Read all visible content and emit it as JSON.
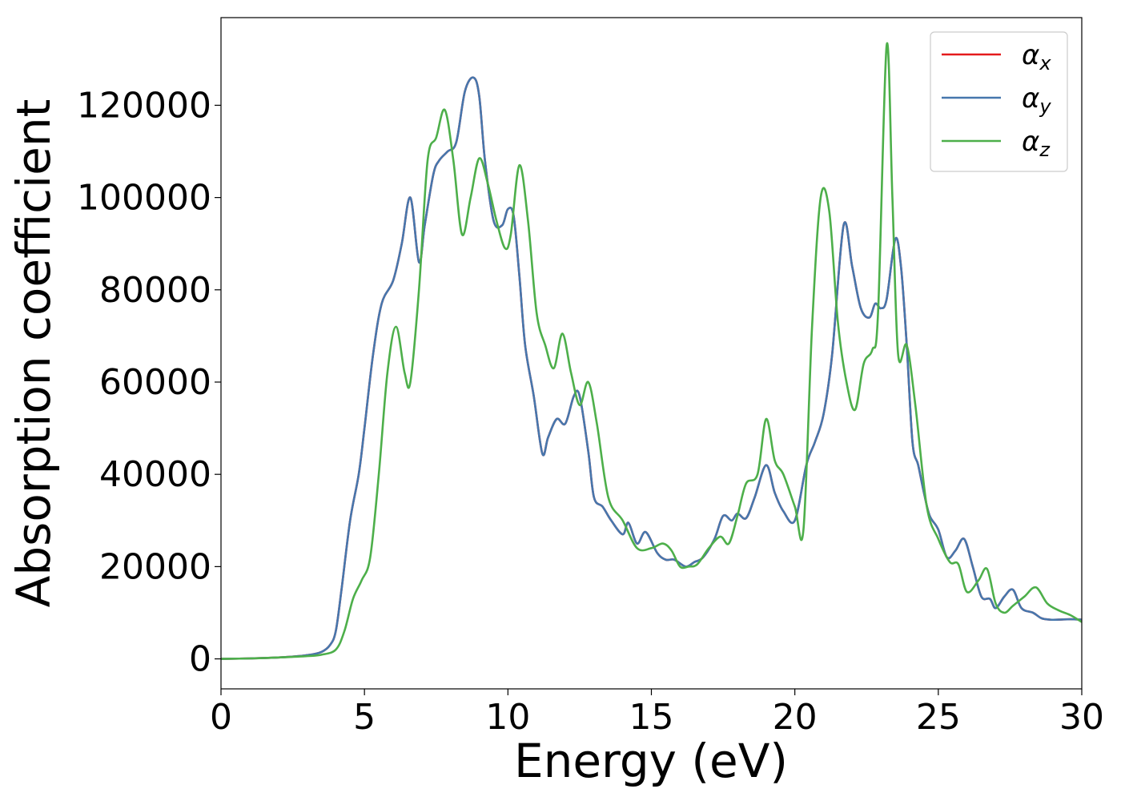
{
  "chart_data": {
    "type": "line",
    "title": "",
    "xlabel": "Energy (eV)",
    "ylabel": "Absorption coefficient",
    "xlim": [
      0,
      30
    ],
    "ylim": [
      -6500,
      139000
    ],
    "xticks": [
      0,
      5,
      10,
      15,
      20,
      25,
      30
    ],
    "yticks": [
      0,
      20000,
      40000,
      60000,
      80000,
      100000,
      120000
    ],
    "grid": false,
    "legend_position": "top-right",
    "series": [
      {
        "name": "α_x",
        "legend_main": "α",
        "legend_sub": "x",
        "color": "#e41a1c",
        "x": [
          0,
          1,
          2,
          3,
          3.5,
          3.8,
          4,
          4.2,
          4.5,
          4.8,
          5,
          5.3,
          5.6,
          6,
          6.3,
          6.6,
          6.9,
          7.1,
          7.4,
          7.6,
          7.9,
          8.2,
          8.5,
          8.8,
          9,
          9.2,
          9.5,
          9.8,
          10,
          10.2,
          10.4,
          10.6,
          10.9,
          11.2,
          11.4,
          11.7,
          12,
          12.3,
          12.5,
          12.8,
          13,
          13.3,
          13.6,
          14,
          14.2,
          14.5,
          14.8,
          15.2,
          15.5,
          15.8,
          16.2,
          16.5,
          16.8,
          17.2,
          17.5,
          17.8,
          18,
          18.3,
          18.6,
          19,
          19.3,
          19.6,
          20,
          20.4,
          20.7,
          21,
          21.3,
          21.7,
          22,
          22.3,
          22.6,
          22.8,
          23,
          23.2,
          23.5,
          23.7,
          23.9,
          24.1,
          24.3,
          24.5,
          24.7,
          25,
          25.3,
          25.6,
          25.9,
          26.2,
          26.5,
          26.8,
          27,
          27.3,
          27.6,
          27.9,
          28.3,
          28.6,
          28.9,
          29.2,
          29.6,
          30
        ],
        "y": [
          0,
          100,
          300,
          800,
          1500,
          3000,
          6000,
          15000,
          30000,
          40000,
          50000,
          66000,
          77000,
          82000,
          90000,
          100000,
          86000,
          94000,
          105000,
          108000,
          110000,
          112000,
          123000,
          126000,
          122000,
          108000,
          95000,
          94000,
          97500,
          96000,
          83000,
          68000,
          57000,
          44500,
          48000,
          52000,
          51000,
          57000,
          57000,
          45000,
          35000,
          33000,
          30000,
          27000,
          29500,
          25000,
          27500,
          23000,
          21500,
          21500,
          20000,
          21000,
          22000,
          26000,
          31000,
          30000,
          31500,
          30500,
          35000,
          42000,
          36000,
          32000,
          30000,
          42000,
          47000,
          53000,
          66000,
          94000,
          85000,
          76000,
          74000,
          77000,
          76000,
          78000,
          91000,
          85000,
          68000,
          47000,
          42000,
          36000,
          31000,
          28000,
          22000,
          23500,
          26000,
          20000,
          13500,
          13000,
          11000,
          13500,
          15000,
          11000,
          10000,
          8800,
          8500,
          8500,
          8600,
          8500
        ]
      },
      {
        "name": "α_y",
        "legend_main": "α",
        "legend_sub": "y",
        "color": "#4677ad",
        "x": [
          0,
          1,
          2,
          3,
          3.5,
          3.8,
          4,
          4.2,
          4.5,
          4.8,
          5,
          5.3,
          5.6,
          6,
          6.3,
          6.6,
          6.9,
          7.1,
          7.4,
          7.6,
          7.9,
          8.2,
          8.5,
          8.8,
          9,
          9.2,
          9.5,
          9.8,
          10,
          10.2,
          10.4,
          10.6,
          10.9,
          11.2,
          11.4,
          11.7,
          12,
          12.3,
          12.5,
          12.8,
          13,
          13.3,
          13.6,
          14,
          14.2,
          14.5,
          14.8,
          15.2,
          15.5,
          15.8,
          16.2,
          16.5,
          16.8,
          17.2,
          17.5,
          17.8,
          18,
          18.3,
          18.6,
          19,
          19.3,
          19.6,
          20,
          20.4,
          20.7,
          21,
          21.3,
          21.7,
          22,
          22.3,
          22.6,
          22.8,
          23,
          23.2,
          23.5,
          23.7,
          23.9,
          24.1,
          24.3,
          24.5,
          24.7,
          25,
          25.3,
          25.6,
          25.9,
          26.2,
          26.5,
          26.8,
          27,
          27.3,
          27.6,
          27.9,
          28.3,
          28.6,
          28.9,
          29.2,
          29.6,
          30
        ],
        "y": [
          0,
          100,
          300,
          800,
          1500,
          3000,
          6000,
          15000,
          30000,
          40000,
          50000,
          66000,
          77000,
          82000,
          90000,
          100000,
          86000,
          94000,
          105000,
          108000,
          110000,
          112000,
          123000,
          126000,
          122000,
          108000,
          95000,
          94000,
          97500,
          96000,
          83000,
          68000,
          57000,
          44500,
          48000,
          52000,
          51000,
          57000,
          57000,
          45000,
          35000,
          33000,
          30000,
          27000,
          29500,
          25000,
          27500,
          23000,
          21500,
          21500,
          20000,
          21000,
          22000,
          26000,
          31000,
          30000,
          31500,
          30500,
          35000,
          42000,
          36000,
          32000,
          30000,
          42000,
          47000,
          53000,
          66000,
          94000,
          85000,
          76000,
          74000,
          77000,
          76000,
          78000,
          91000,
          85000,
          68000,
          47000,
          42000,
          36000,
          31000,
          28000,
          22000,
          23500,
          26000,
          20000,
          13500,
          13000,
          11000,
          13500,
          15000,
          11000,
          10000,
          8800,
          8500,
          8500,
          8600,
          8500
        ]
      },
      {
        "name": "α_z",
        "legend_main": "α",
        "legend_sub": "z",
        "color": "#4daf4a",
        "x": [
          0,
          1,
          2,
          3,
          3.5,
          4,
          4.3,
          4.6,
          4.9,
          5.2,
          5.5,
          5.8,
          6.1,
          6.4,
          6.6,
          6.9,
          7.2,
          7.5,
          7.8,
          8.1,
          8.4,
          8.7,
          9,
          9.3,
          9.6,
          9.9,
          10.1,
          10.4,
          10.7,
          11,
          11.3,
          11.6,
          11.9,
          12.2,
          12.5,
          12.8,
          13.1,
          13.5,
          14,
          14.5,
          15,
          15.4,
          15.7,
          16,
          16.3,
          16.6,
          17,
          17.4,
          17.7,
          18,
          18.3,
          18.7,
          19,
          19.3,
          19.6,
          20,
          20.3,
          20.6,
          20.9,
          21.2,
          21.5,
          21.8,
          22.1,
          22.4,
          22.7,
          22.9,
          23.2,
          23.4,
          23.6,
          23.9,
          24.2,
          24.6,
          25,
          25.4,
          25.7,
          26,
          26.4,
          26.7,
          27,
          27.3,
          27.6,
          28,
          28.4,
          28.8,
          29.2,
          29.6,
          30
        ],
        "y": [
          0,
          100,
          300,
          600,
          900,
          2000,
          6000,
          13000,
          17000,
          22000,
          40000,
          62000,
          72000,
          62000,
          60000,
          80000,
          108000,
          113000,
          119000,
          108000,
          92000,
          100000,
          108500,
          103000,
          95000,
          89000,
          92000,
          107000,
          95000,
          75000,
          68000,
          63000,
          70500,
          62000,
          55000,
          60000,
          51000,
          35000,
          30000,
          24000,
          24000,
          25000,
          23500,
          20000,
          20000,
          20500,
          24000,
          26500,
          25000,
          31000,
          38000,
          40000,
          52000,
          43000,
          40000,
          33000,
          28000,
          72000,
          100000,
          97000,
          73000,
          60000,
          54000,
          64000,
          67000,
          75000,
          133000,
          100000,
          66000,
          68000,
          55000,
          33000,
          26000,
          21000,
          20500,
          14500,
          17000,
          19500,
          12000,
          10000,
          11500,
          13500,
          15500,
          12000,
          10500,
          9500,
          8000
        ]
      }
    ]
  }
}
